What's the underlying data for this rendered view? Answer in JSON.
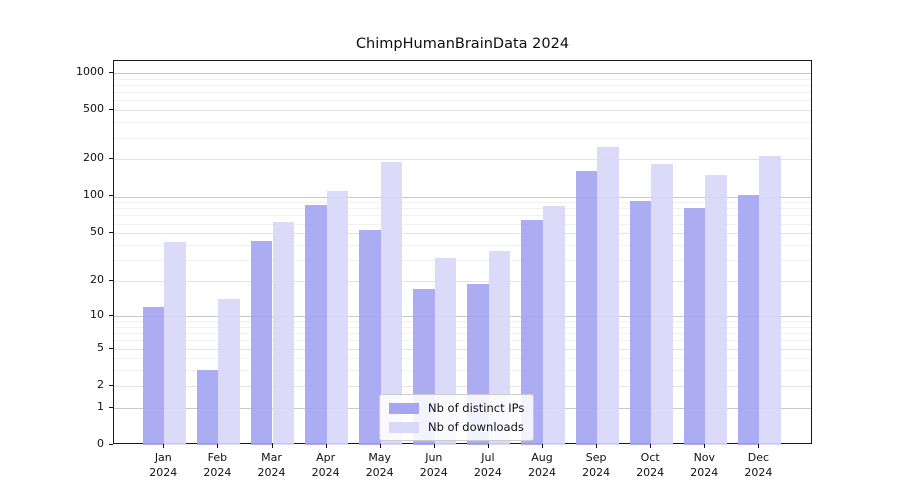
{
  "chart_data": {
    "type": "bar",
    "title": "ChimpHumanBrainData 2024",
    "categories": [
      "Jan",
      "Feb",
      "Mar",
      "Apr",
      "May",
      "Jun",
      "Jul",
      "Aug",
      "Sep",
      "Oct",
      "Nov",
      "Dec"
    ],
    "category_year": "2024",
    "series": [
      {
        "name": "Nb of distinct IPs",
        "color": "#a5a5f2",
        "values": [
          12,
          3,
          43,
          86,
          53,
          17,
          19,
          64,
          160,
          92,
          81,
          102
        ]
      },
      {
        "name": "Nb of downloads",
        "color": "#d8d8f8",
        "values": [
          42,
          14,
          62,
          110,
          190,
          31,
          36,
          84,
          252,
          183,
          150,
          213
        ]
      }
    ],
    "yscale": "log10(value+1)",
    "yticks": [
      0,
      1,
      2,
      5,
      10,
      20,
      50,
      100,
      200,
      500,
      1000
    ],
    "minor_yticks": [
      3,
      4,
      6,
      7,
      8,
      9,
      30,
      40,
      60,
      70,
      80,
      90,
      300,
      400,
      600,
      700,
      800,
      900
    ],
    "ylim": [
      0,
      1250
    ],
    "xlabel": "",
    "ylabel": "",
    "grid": true,
    "legend_position": "lower center"
  },
  "colors": {
    "background": "#ffffff",
    "grid_decade": "#c9c9c9",
    "grid_labeled": "#e3e3e3",
    "grid_minor": "#f1f1f1",
    "spine": "#1a1a1a",
    "text": "#111111"
  }
}
